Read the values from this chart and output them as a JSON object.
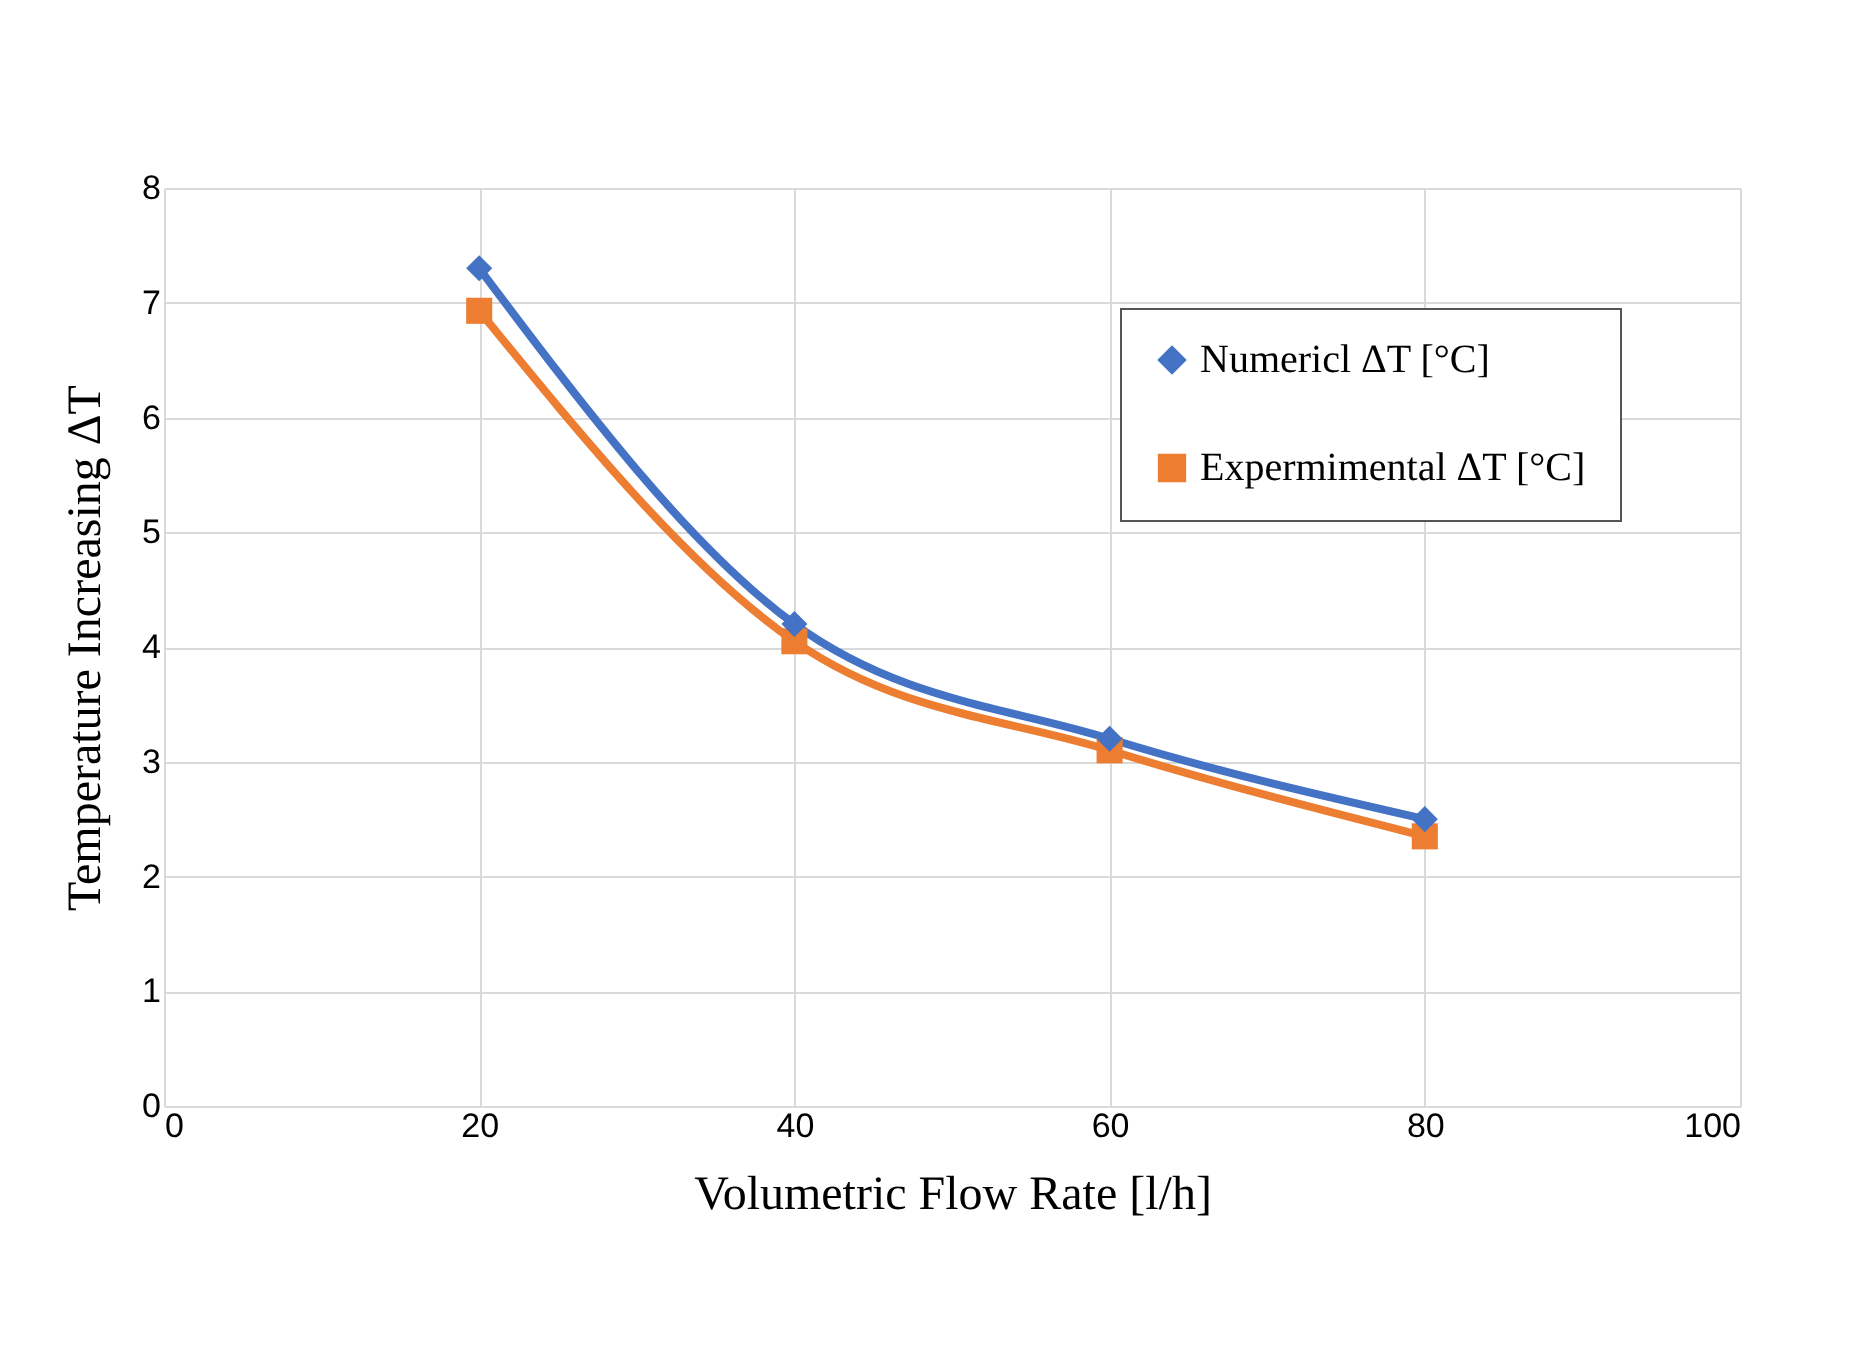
{
  "chart_data": {
    "type": "line",
    "xlabel": "Volumetric  Flow Rate [l/h]",
    "ylabel": "Temperature Increasing ΔT",
    "x": [
      20,
      40,
      60,
      80
    ],
    "series": [
      {
        "name": "Numericl ΔT [°C]",
        "color": "#4472c4",
        "marker": "diamond",
        "values": [
          7.3,
          4.2,
          3.2,
          2.5
        ]
      },
      {
        "name": "Expermimental ΔT [°C]",
        "color": "#ed7d31",
        "marker": "square",
        "values": [
          6.93,
          4.05,
          3.1,
          2.35
        ]
      }
    ],
    "xlim": [
      0,
      100
    ],
    "xticks": [
      0,
      20,
      40,
      60,
      80,
      100
    ],
    "ylim": [
      0,
      8
    ],
    "yticks": [
      0,
      1,
      2,
      3,
      4,
      5,
      6,
      7,
      8
    ],
    "grid": true,
    "legend": "top right"
  }
}
